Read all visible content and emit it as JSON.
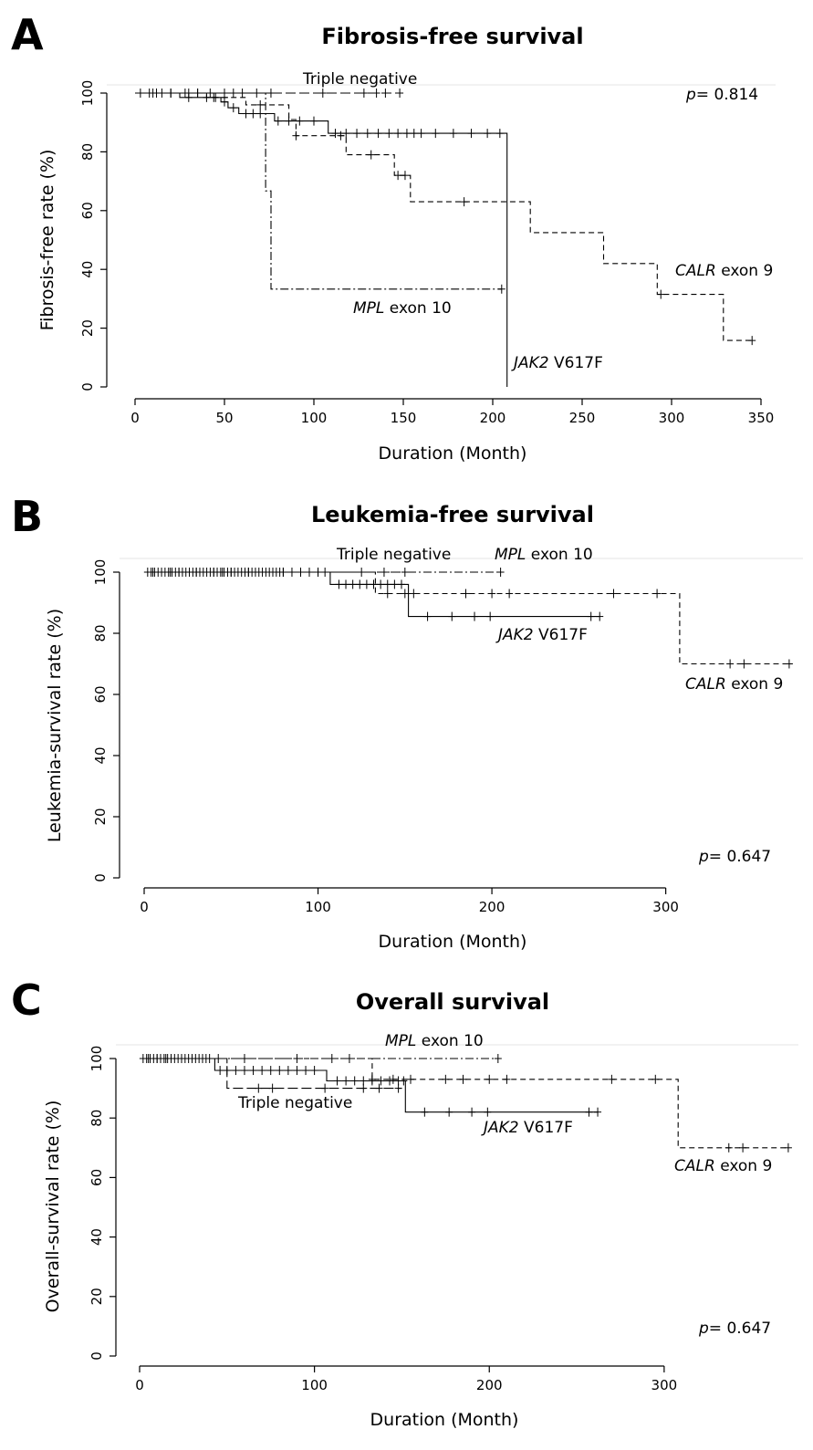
{
  "chart_data": [
    {
      "type": "line",
      "panel_letter": "A",
      "title": "Fibrosis-free survival",
      "xlabel": "Duration (Month)",
      "ylabel": "Fibrosis-free rate (%)",
      "xlim": [
        0,
        350
      ],
      "ylim": [
        0,
        100
      ],
      "xticks": [
        0,
        50,
        100,
        150,
        200,
        250,
        300,
        350
      ],
      "yticks": [
        0,
        20,
        40,
        60,
        80,
        100
      ],
      "pvalue": {
        "prefix": "p",
        "text": "= 0.814",
        "position": "top-right"
      },
      "series": [
        {
          "name": "Triple negative",
          "label_gene": "",
          "label_rest": "Triple negative",
          "style": "longdash",
          "steps": [
            [
              0,
              100
            ],
            [
              148,
              100
            ]
          ],
          "censor": [
            3,
            8,
            12,
            20,
            28,
            35,
            42,
            50,
            60,
            68,
            76,
            105,
            128,
            135,
            140,
            148
          ]
        },
        {
          "name": "JAK2 V617F",
          "label_gene": "JAK2",
          "label_rest": " V617F",
          "style": "solid",
          "steps": [
            [
              0,
              100
            ],
            [
              25,
              100
            ],
            [
              25,
              98.5
            ],
            [
              48,
              98.5
            ],
            [
              48,
              97
            ],
            [
              52,
              97
            ],
            [
              52,
              95
            ],
            [
              58,
              95
            ],
            [
              58,
              93
            ],
            [
              78,
              93
            ],
            [
              78,
              90.5
            ],
            [
              108,
              90.5
            ],
            [
              108,
              86.3
            ],
            [
              208,
              86.3
            ],
            [
              208,
              0
            ]
          ],
          "censor": [
            10,
            20,
            30,
            40,
            45,
            50,
            55,
            62,
            66,
            70,
            80,
            86,
            92,
            100,
            112,
            118,
            124,
            130,
            136,
            142,
            147,
            152,
            156,
            160,
            168,
            178,
            188,
            197,
            204
          ]
        },
        {
          "name": "CALR exon 9",
          "label_gene": "CALR",
          "label_rest": " exon 9",
          "style": "dashed",
          "steps": [
            [
              0,
              100
            ],
            [
              40,
              100
            ],
            [
              40,
              98.5
            ],
            [
              62,
              98.5
            ],
            [
              62,
              96
            ],
            [
              86,
              96
            ],
            [
              86,
              91
            ],
            [
              90,
              91
            ],
            [
              90,
              85.5
            ],
            [
              118,
              85.5
            ],
            [
              118,
              79
            ],
            [
              145,
              79
            ],
            [
              145,
              72
            ],
            [
              154,
              72
            ],
            [
              154,
              63
            ],
            [
              221,
              63
            ],
            [
              221,
              52.5
            ],
            [
              262,
              52.5
            ],
            [
              262,
              42
            ],
            [
              292,
              42
            ],
            [
              292,
              31.5
            ],
            [
              329,
              31.5
            ],
            [
              329,
              15.8
            ],
            [
              345,
              15.8
            ]
          ],
          "censor": [
            30,
            44,
            50,
            70,
            90,
            115,
            132,
            147,
            151,
            184,
            294,
            345
          ]
        },
        {
          "name": "MPL exon 10",
          "label_gene": "MPL",
          "label_rest": " exon 10",
          "style": "dashdot",
          "steps": [
            [
              0,
              100
            ],
            [
              73,
              100
            ],
            [
              73,
              66.7
            ],
            [
              76,
              66.7
            ],
            [
              76,
              33.3
            ],
            [
              205,
              33.3
            ]
          ],
          "censor": [
            15,
            35,
            55,
            205
          ]
        }
      ]
    },
    {
      "type": "line",
      "panel_letter": "B",
      "title": "Leukemia-free survival",
      "xlabel": "Duration (Month)",
      "ylabel": "Leukemia-survival rate (%)",
      "xlim": [
        0,
        370
      ],
      "ylim": [
        0,
        100
      ],
      "xticks": [
        0,
        100,
        200,
        300
      ],
      "yticks": [
        0,
        20,
        40,
        60,
        80,
        100
      ],
      "pvalue": {
        "prefix": "p",
        "text": "= 0.647",
        "position": "bottom-right"
      },
      "series": [
        {
          "name": "Triple negative",
          "label_gene": "",
          "label_rest": "Triple negative",
          "style": "longdash",
          "steps": [
            [
              0,
              100
            ],
            [
              150,
              100
            ]
          ],
          "censor": [
            5,
            15,
            30,
            45,
            60,
            80,
            100,
            125,
            138,
            150
          ]
        },
        {
          "name": "MPL exon 10",
          "label_gene": "MPL",
          "label_rest": " exon 10",
          "style": "dashdot",
          "steps": [
            [
              0,
              100
            ],
            [
              205,
              100
            ]
          ],
          "censor": [
            20,
            50,
            80,
            205
          ]
        },
        {
          "name": "JAK2 V617F",
          "label_gene": "JAK2",
          "label_rest": " V617F",
          "style": "solid",
          "steps": [
            [
              0,
              100
            ],
            [
              107,
              100
            ],
            [
              107,
              96
            ],
            [
              152,
              96
            ],
            [
              152,
              85.5
            ],
            [
              262,
              85.5
            ]
          ],
          "censor": [
            2,
            4,
            6,
            8,
            10,
            12,
            14,
            16,
            18,
            20,
            22,
            24,
            26,
            28,
            30,
            32,
            34,
            36,
            38,
            40,
            42,
            44,
            46,
            48,
            50,
            52,
            54,
            56,
            58,
            60,
            62,
            64,
            66,
            68,
            70,
            72,
            74,
            76,
            78,
            80,
            85,
            90,
            95,
            100,
            104,
            112,
            116,
            120,
            124,
            128,
            132,
            136,
            140,
            144,
            148,
            163,
            177,
            190,
            199,
            257,
            262
          ]
        },
        {
          "name": "CALR exon 9",
          "label_gene": "CALR",
          "label_rest": " exon 9",
          "style": "dashed",
          "steps": [
            [
              0,
              100
            ],
            [
              133,
              100
            ],
            [
              133,
              93
            ],
            [
              308,
              93
            ],
            [
              308,
              70
            ],
            [
              371,
              70
            ]
          ],
          "censor": [
            40,
            90,
            140,
            150,
            155,
            185,
            200,
            210,
            270,
            295,
            337,
            345,
            371
          ]
        }
      ]
    },
    {
      "type": "line",
      "panel_letter": "C",
      "title": "Overall survival",
      "xlabel": "Duration (Month)",
      "ylabel": "Overall-survival rate (%)",
      "xlim": [
        0,
        370
      ],
      "ylim": [
        0,
        100
      ],
      "xticks": [
        0,
        100,
        200,
        300
      ],
      "yticks": [
        0,
        20,
        40,
        60,
        80,
        100
      ],
      "pvalue": {
        "prefix": "p",
        "text": "= 0.647",
        "position": "bottom-right"
      },
      "series": [
        {
          "name": "MPL exon 10",
          "label_gene": "MPL",
          "label_rest": " exon 10",
          "style": "dashdot",
          "steps": [
            [
              0,
              100
            ],
            [
              205,
              100
            ]
          ],
          "censor": [
            10,
            30,
            60,
            90,
            110,
            120,
            205
          ]
        },
        {
          "name": "Triple negative",
          "label_gene": "",
          "label_rest": "Triple negative",
          "style": "longdash",
          "steps": [
            [
              0,
              100
            ],
            [
              50,
              100
            ],
            [
              50,
              90
            ],
            [
              150,
              90
            ]
          ],
          "censor": [
            5,
            15,
            30,
            45,
            68,
            76,
            106,
            128,
            137,
            148
          ]
        },
        {
          "name": "JAK2 V617F",
          "label_gene": "JAK2",
          "label_rest": " V617F",
          "style": "solid",
          "steps": [
            [
              0,
              100
            ],
            [
              43,
              100
            ],
            [
              43,
              96
            ],
            [
              107,
              96
            ],
            [
              107,
              92.5
            ],
            [
              152,
              92.5
            ],
            [
              152,
              82
            ],
            [
              262,
              82
            ]
          ],
          "censor": [
            2,
            4,
            6,
            8,
            10,
            12,
            14,
            16,
            18,
            20,
            22,
            24,
            26,
            28,
            30,
            32,
            34,
            36,
            38,
            40,
            46,
            50,
            55,
            60,
            65,
            70,
            75,
            80,
            85,
            90,
            95,
            100,
            113,
            118,
            123,
            128,
            133,
            138,
            143,
            148,
            151,
            163,
            177,
            190,
            199,
            257,
            262
          ]
        },
        {
          "name": "CALR exon 9",
          "label_gene": "CALR",
          "label_rest": " exon 9",
          "style": "dashed",
          "steps": [
            [
              0,
              100
            ],
            [
              133,
              100
            ],
            [
              133,
              93
            ],
            [
              308,
              93
            ],
            [
              308,
              70
            ],
            [
              371,
              70
            ]
          ],
          "censor": [
            133,
            145,
            155,
            175,
            185,
            200,
            210,
            270,
            295,
            337,
            345,
            371
          ]
        }
      ]
    }
  ]
}
